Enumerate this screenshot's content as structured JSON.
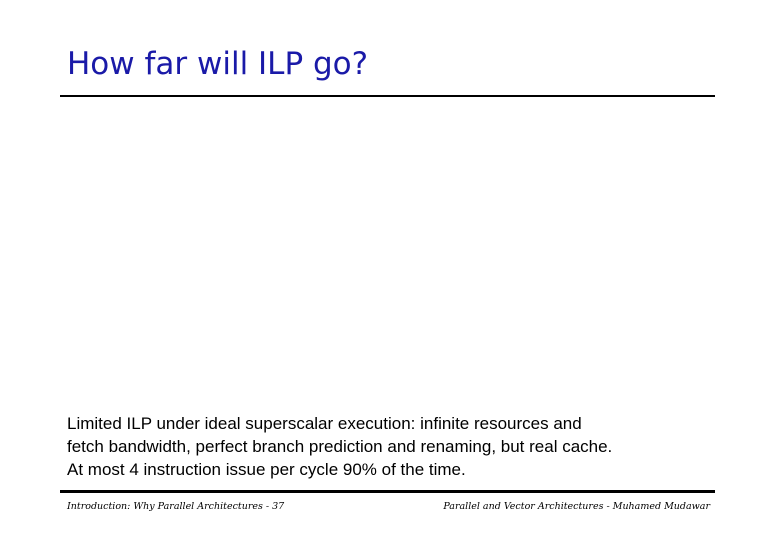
{
  "slide": {
    "title": "How far will ILP go?",
    "body_lines": [
      "Limited ILP under ideal superscalar execution: infinite resources and",
      "fetch bandwidth, perfect branch prediction and renaming, but real cache.",
      "At most 4 instruction issue per cycle 90% of the time."
    ]
  },
  "footer": {
    "left": "Introduction: Why Parallel Architectures - 37",
    "right": "Parallel and Vector Architectures - Muhamed Mudawar"
  }
}
